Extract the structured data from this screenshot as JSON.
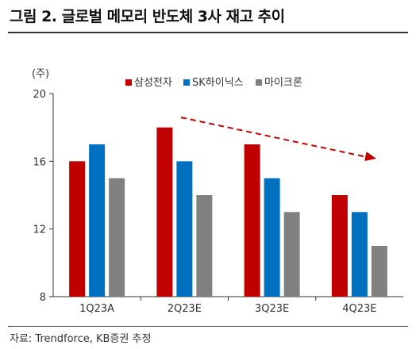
{
  "title": "그림 2. 글로벌 메모리 반도체 3사 재고 추이",
  "source": "자료: Trendforce, KB증권 추정",
  "chart_data": {
    "type": "bar",
    "ylabel": "(주)",
    "ylim": [
      8,
      20
    ],
    "yticks": [
      8,
      12,
      16,
      20
    ],
    "categories": [
      "1Q23A",
      "2Q23E",
      "3Q23E",
      "4Q23E"
    ],
    "series": [
      {
        "name": "삼성전자",
        "color": "#c00000",
        "values": [
          16,
          18,
          17,
          14
        ]
      },
      {
        "name": "SK하이닉스",
        "color": "#0070c0",
        "values": [
          17,
          16,
          15,
          13
        ]
      },
      {
        "name": "마이크론",
        "color": "#808080",
        "values": [
          15,
          14,
          13,
          11
        ]
      }
    ],
    "legend_position": "top-right",
    "annotation": {
      "type": "dashed-arrow",
      "color": "#c00000",
      "direction": "down-right"
    },
    "grid": false
  }
}
